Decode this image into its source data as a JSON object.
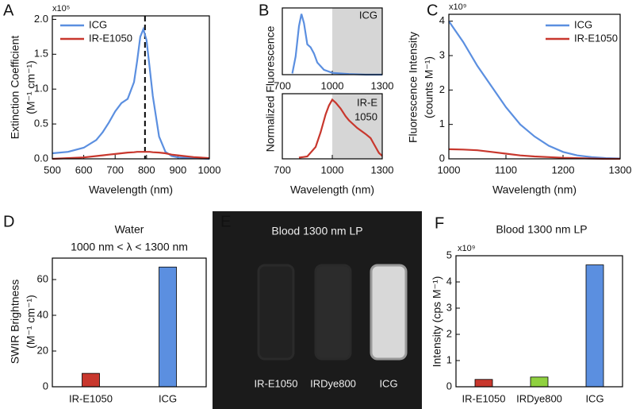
{
  "chart_data": [
    {
      "type": "line",
      "panel": "A",
      "multiplier": "x10⁵",
      "xlabel": "Wavelength (nm)",
      "ylabel": [
        "Extinction Coefficient",
        "(M⁻¹ cm⁻¹)"
      ],
      "x": [
        500,
        550,
        600,
        640,
        660,
        680,
        700,
        720,
        740,
        760,
        770,
        780,
        790,
        800,
        810,
        820,
        840,
        860,
        880,
        900,
        950,
        1000
      ],
      "series": [
        {
          "name": "ICG",
          "color": "#5b8fe0",
          "values": [
            0.08,
            0.1,
            0.16,
            0.27,
            0.38,
            0.52,
            0.68,
            0.8,
            0.86,
            1.1,
            1.4,
            1.75,
            1.86,
            1.7,
            1.3,
            0.9,
            0.32,
            0.1,
            0.04,
            0.02,
            0.01,
            0
          ]
        },
        {
          "name": "IR-E1050",
          "color": "#c8372d",
          "values": [
            0,
            0.01,
            0.02,
            0.04,
            0.05,
            0.06,
            0.07,
            0.08,
            0.09,
            0.095,
            0.1,
            0.1,
            0.1,
            0.1,
            0.1,
            0.095,
            0.09,
            0.08,
            0.06,
            0.05,
            0.025,
            0.01
          ]
        }
      ],
      "xlim": [
        500,
        1000
      ],
      "xticks": [
        500,
        600,
        700,
        800,
        900,
        1000
      ],
      "ylim": [
        0,
        2.05
      ],
      "yticks": [
        {
          "value": 0,
          "label": "0.0"
        },
        0.5,
        {
          "value": 1,
          "label": "1.0"
        },
        1.5,
        {
          "value": 2,
          "label": "2.0"
        }
      ],
      "vline": 795,
      "legend": "upper left"
    },
    {
      "type": "line",
      "panel": "B",
      "ylabel": "Normalized Fluorescence",
      "annotation": [
        "ICG"
      ],
      "shade": [
        1000,
        1300
      ],
      "x": [
        760,
        780,
        800,
        815,
        830,
        850,
        870,
        890,
        910,
        950,
        1000,
        1100,
        1200,
        1300
      ],
      "series": [
        {
          "color": "#5b8fe0",
          "values": [
            0.02,
            0.3,
            0.8,
            1.0,
            0.85,
            0.5,
            0.45,
            0.35,
            0.2,
            0.08,
            0.03,
            0.01,
            0,
            0
          ]
        }
      ],
      "xlim": [
        700,
        1300
      ],
      "xticks": [
        700,
        1000,
        1300
      ],
      "ylim": [
        0,
        1.1
      ]
    },
    {
      "type": "line",
      "xlabel": "Wavelength (nm)",
      "annotation": [
        "IR-E",
        "1050"
      ],
      "shade": [
        1000,
        1300
      ],
      "x": [
        800,
        850,
        900,
        930,
        960,
        980,
        1000,
        1020,
        1050,
        1080,
        1100,
        1150,
        1200,
        1230,
        1250,
        1280,
        1300
      ],
      "series": [
        {
          "color": "#c8372d",
          "values": [
            0.02,
            0.04,
            0.2,
            0.45,
            0.75,
            0.9,
            1.0,
            0.95,
            0.85,
            0.72,
            0.65,
            0.52,
            0.42,
            0.35,
            0.25,
            0.1,
            0.05
          ]
        }
      ],
      "xlim": [
        700,
        1300
      ],
      "xticks": [
        700,
        1000,
        1300
      ],
      "ylim": [
        0,
        1.1
      ]
    },
    {
      "type": "line",
      "panel": "C",
      "multiplier": "x10⁹",
      "xlabel": "Wavelength (nm)",
      "ylabel": [
        "Fluorescence Intensity",
        "(counts M⁻¹)"
      ],
      "x": [
        1000,
        1025,
        1050,
        1075,
        1100,
        1125,
        1150,
        1175,
        1200,
        1225,
        1250,
        1275,
        1300
      ],
      "series": [
        {
          "name": "ICG",
          "color": "#5b8fe0",
          "values": [
            4.0,
            3.4,
            2.7,
            2.1,
            1.5,
            1.0,
            0.65,
            0.38,
            0.2,
            0.1,
            0.05,
            0.02,
            0.01
          ]
        },
        {
          "name": "IR-E1050",
          "color": "#c8372d",
          "values": [
            0.28,
            0.27,
            0.25,
            0.2,
            0.15,
            0.1,
            0.07,
            0.05,
            0.03,
            0.02,
            0.01,
            0,
            0
          ]
        }
      ],
      "xlim": [
        1000,
        1300
      ],
      "xticks": [
        1000,
        1100,
        1200,
        1300
      ],
      "ylim": [
        0,
        4.2
      ],
      "yticks": [
        0,
        1,
        2,
        3,
        4
      ],
      "legend": "upper right"
    },
    {
      "type": "bar",
      "panel": "D",
      "title": "Water",
      "subtitle": "1000 nm < λ < 1300 nm",
      "ylabel": [
        "SWIR Brightness",
        "(M⁻¹ cm⁻¹)"
      ],
      "categories": [
        "IR-E1050",
        "ICG"
      ],
      "values": [
        7.5,
        67
      ],
      "colors": [
        "#c8372d",
        "#5b8fe0"
      ],
      "ylim": [
        0,
        72
      ],
      "yticks": [
        0,
        20,
        40,
        60
      ]
    },
    {
      "type": "image",
      "panel": "E",
      "title": "Blood 1300 nm LP",
      "categories": [
        "IR-E1050",
        "IRDye800",
        "ICG"
      ]
    },
    {
      "type": "bar",
      "panel": "F",
      "title": "Blood 1300 nm LP",
      "multiplier": "x10⁹",
      "ylabel": [
        "Intensity (cps M⁻¹)"
      ],
      "categories": [
        "IR-E1050",
        "IRDye800",
        "ICG"
      ],
      "values": [
        0.28,
        0.37,
        4.65
      ],
      "colors": [
        "#c8372d",
        "#8fd13f",
        "#5b8fe0"
      ],
      "ylim": [
        0,
        5
      ],
      "yticks": [
        0,
        1,
        2,
        3,
        4,
        5
      ]
    }
  ]
}
